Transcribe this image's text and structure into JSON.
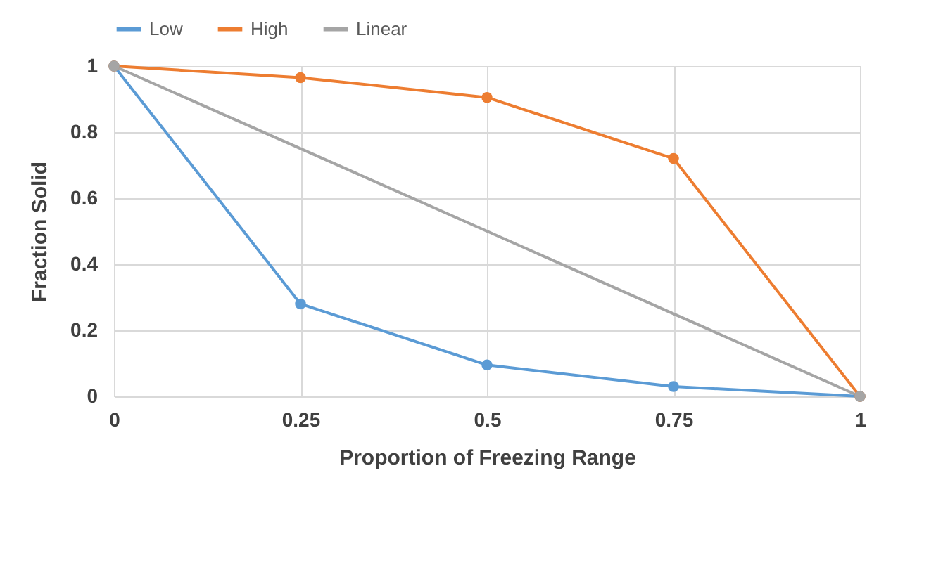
{
  "chart_data": {
    "type": "line",
    "xlabel": "Proportion of Freezing Range",
    "ylabel": "Fraction Solid",
    "x": [
      0,
      0.25,
      0.5,
      0.75,
      1
    ],
    "series": [
      {
        "name": "Low",
        "color": "#5b9bd5",
        "values": [
          1,
          0.28,
          0.095,
          0.03,
          0
        ]
      },
      {
        "name": "High",
        "color": "#ed7d31",
        "values": [
          1,
          0.965,
          0.905,
          0.72,
          0
        ]
      },
      {
        "name": "Linear",
        "color": "#a5a5a5",
        "x": [
          0,
          1
        ],
        "values": [
          1,
          0
        ]
      }
    ],
    "xlim": [
      0,
      1
    ],
    "xticks": [
      0,
      0.25,
      0.5,
      0.75,
      1
    ],
    "ylim": [
      0,
      1
    ],
    "yticks": [
      0,
      0.2,
      0.4,
      0.6,
      0.8,
      1
    ],
    "grid": true,
    "legend": "top",
    "marker": "circle",
    "line_style": "solid"
  }
}
